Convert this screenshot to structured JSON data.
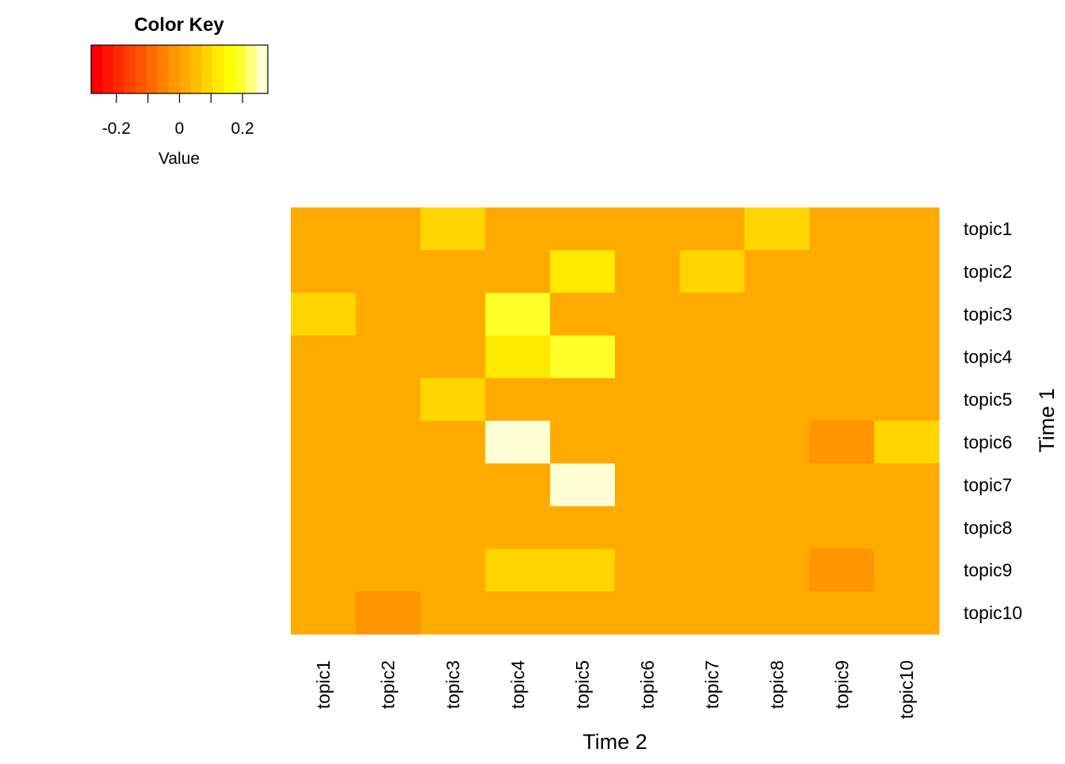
{
  "chart_data": {
    "type": "heatmap",
    "x_categories": [
      "topic1",
      "topic2",
      "topic3",
      "topic4",
      "topic5",
      "topic6",
      "topic7",
      "topic8",
      "topic9",
      "topic10"
    ],
    "y_categories": [
      "topic1",
      "topic2",
      "topic3",
      "topic4",
      "topic5",
      "topic6",
      "topic7",
      "topic8",
      "topic9",
      "topic10"
    ],
    "xlabel": "Time 2",
    "ylabel": "Time 1",
    "values": [
      [
        0.03,
        0.03,
        0.07,
        0.03,
        0.03,
        0.03,
        0.03,
        0.07,
        0.03,
        0.03
      ],
      [
        0.03,
        0.03,
        0.03,
        0.03,
        0.12,
        0.03,
        0.07,
        0.03,
        0.03,
        0.03
      ],
      [
        0.07,
        0.03,
        0.03,
        0.2,
        0.03,
        0.03,
        0.03,
        0.03,
        0.03,
        0.03
      ],
      [
        0.03,
        0.03,
        0.03,
        0.12,
        0.2,
        0.03,
        0.03,
        0.03,
        0.03,
        0.03
      ],
      [
        0.03,
        0.03,
        0.07,
        0.03,
        0.03,
        0.03,
        0.03,
        0.03,
        0.03,
        0.03
      ],
      [
        0.03,
        0.03,
        0.03,
        0.27,
        0.03,
        0.03,
        0.03,
        0.03,
        -0.01,
        0.07
      ],
      [
        0.03,
        0.03,
        0.03,
        0.03,
        0.25,
        0.03,
        0.03,
        0.03,
        0.03,
        0.03
      ],
      [
        0.03,
        0.03,
        0.03,
        0.03,
        0.03,
        0.03,
        0.03,
        0.03,
        0.03,
        0.03
      ],
      [
        0.03,
        0.03,
        0.03,
        0.07,
        0.07,
        0.03,
        0.03,
        0.03,
        -0.01,
        0.03
      ],
      [
        0.03,
        -0.01,
        0.03,
        0.03,
        0.03,
        0.03,
        0.03,
        0.03,
        0.03,
        0.03
      ]
    ],
    "color_key": {
      "title": "Color Key",
      "xlabel": "Value",
      "range": [
        -0.28,
        0.28
      ],
      "ticks": [
        -0.2,
        0,
        0.2
      ],
      "tick_labels": [
        "-0.2",
        "0",
        "0.2"
      ],
      "colors": [
        "#FF0000",
        "#FF1500",
        "#FF2A00",
        "#FF4000",
        "#FF5500",
        "#FF6A00",
        "#FF8000",
        "#FF9500",
        "#FFAA00",
        "#FFBF00",
        "#FFD500",
        "#FFEA00",
        "#FFFF00",
        "#FFFF2A",
        "#FFFF80",
        "#FFFFD5"
      ]
    }
  }
}
